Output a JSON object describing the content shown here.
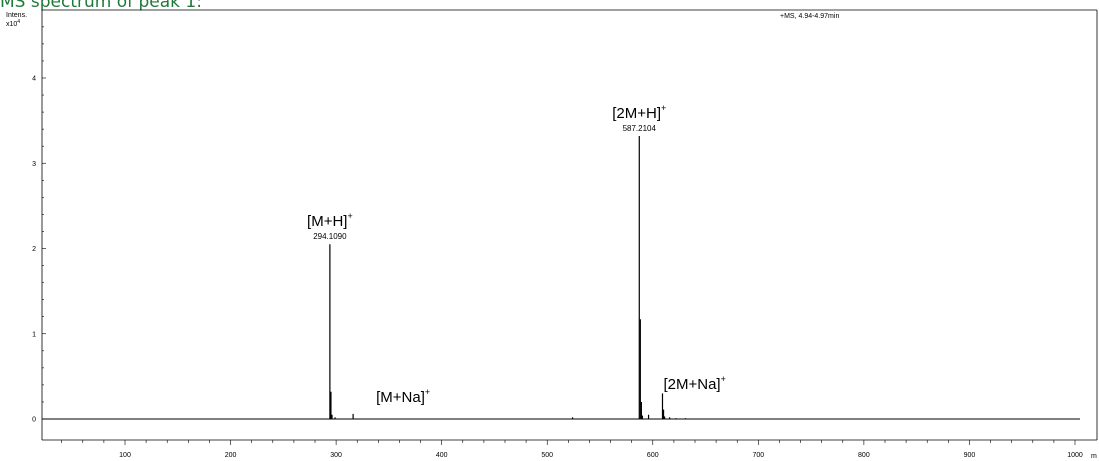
{
  "title": "MS spectrum of peak 1:",
  "chart_data": {
    "type": "bar",
    "scan_label": "+MS, 4.94-4.97min",
    "ylabel": "Intens.",
    "yscale_label": "x10",
    "yscale_exp": "4",
    "xlabel": "m",
    "xlim": [
      27,
      1013
    ],
    "ylim": [
      -0.27,
      4.8
    ],
    "xticks": [
      100,
      200,
      300,
      400,
      500,
      600,
      700,
      800,
      900,
      1000
    ],
    "yticks": [
      0,
      1,
      2,
      3,
      4
    ],
    "peaks": [
      {
        "mz": 294.109,
        "intensity": 2.05
      },
      {
        "mz": 295.1,
        "intensity": 0.32
      },
      {
        "mz": 296.1,
        "intensity": 0.05
      },
      {
        "mz": 299.0,
        "intensity": 0.02
      },
      {
        "mz": 316.1,
        "intensity": 0.06
      },
      {
        "mz": 524.0,
        "intensity": 0.02
      },
      {
        "mz": 587.2104,
        "intensity": 3.32
      },
      {
        "mz": 588.2,
        "intensity": 1.17
      },
      {
        "mz": 589.2,
        "intensity": 0.2
      },
      {
        "mz": 590.2,
        "intensity": 0.04
      },
      {
        "mz": 596.0,
        "intensity": 0.05
      },
      {
        "mz": 609.2,
        "intensity": 0.3
      },
      {
        "mz": 610.2,
        "intensity": 0.11
      },
      {
        "mz": 611.2,
        "intensity": 0.03
      },
      {
        "mz": 616.0,
        "intensity": 0.02
      },
      {
        "mz": 622.0,
        "intensity": 0.01
      },
      {
        "mz": 631.0,
        "intensity": 0.01
      }
    ],
    "peak_labels": [
      {
        "mz": 294.109,
        "text": "294.1090"
      },
      {
        "mz": 587.2104,
        "text": "587.2104"
      }
    ],
    "annotations": [
      {
        "text": "[M+H]",
        "sup": "+",
        "mz": 294.109
      },
      {
        "text": "[M+Na]",
        "sup": "+",
        "mz": 316.1
      },
      {
        "text": "[2M+H]",
        "sup": "+",
        "mz": 587.2104
      },
      {
        "text": "[2M+Na]",
        "sup": "+",
        "mz": 609.2
      }
    ],
    "colors": {
      "trace": "#000000",
      "baseline": "#000000",
      "frame": "#000000"
    }
  }
}
